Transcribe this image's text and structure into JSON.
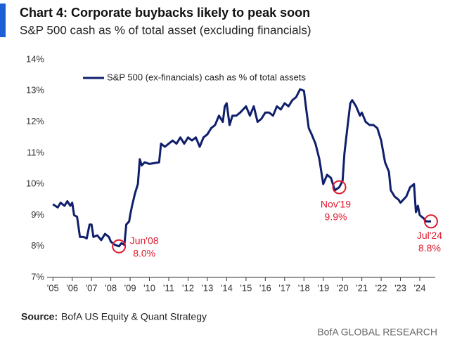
{
  "chart_data": {
    "type": "line",
    "title": "Chart 4: Corporate buybacks likely to peak soon",
    "subtitle": "S&P 500 cash as % of total asset (excluding financials)",
    "source_label": "Source:",
    "source": "BofA US Equity & Quant Strategy",
    "footer": "BofA GLOBAL RESEARCH",
    "legend": "upper left",
    "grid": false,
    "xlim": [
      2004.7,
      2024.8
    ],
    "ylim": [
      7,
      14
    ],
    "yticks": [
      {
        "value": 7,
        "label": "7%"
      },
      {
        "value": 8,
        "label": "8%"
      },
      {
        "value": 9,
        "label": "9%"
      },
      {
        "value": 10,
        "label": "10%"
      },
      {
        "value": 11,
        "label": "11%"
      },
      {
        "value": 12,
        "label": "12%"
      },
      {
        "value": 13,
        "label": "13%"
      },
      {
        "value": 14,
        "label": "14%"
      }
    ],
    "xticks": [
      {
        "value": 2005,
        "label": "'05"
      },
      {
        "value": 2006,
        "label": "'06"
      },
      {
        "value": 2007,
        "label": "'07"
      },
      {
        "value": 2008,
        "label": "'08"
      },
      {
        "value": 2009,
        "label": "'09"
      },
      {
        "value": 2010,
        "label": "'10"
      },
      {
        "value": 2011,
        "label": "'11"
      },
      {
        "value": 2012,
        "label": "'12"
      },
      {
        "value": 2013,
        "label": "'13"
      },
      {
        "value": 2014,
        "label": "'14"
      },
      {
        "value": 2015,
        "label": "'15"
      },
      {
        "value": 2016,
        "label": "'16"
      },
      {
        "value": 2017,
        "label": "'17"
      },
      {
        "value": 2018,
        "label": "'18"
      },
      {
        "value": 2019,
        "label": "'19"
      },
      {
        "value": 2020,
        "label": "'20"
      },
      {
        "value": 2021,
        "label": "'21"
      },
      {
        "value": 2022,
        "label": "'22"
      },
      {
        "value": 2023,
        "label": "'23"
      },
      {
        "value": 2024,
        "label": "'24"
      }
    ],
    "x": [
      2005.0,
      2005.25,
      2005.4,
      2005.6,
      2005.75,
      2005.9,
      2006.0,
      2006.1,
      2006.25,
      2006.4,
      2006.6,
      2006.75,
      2006.9,
      2007.0,
      2007.1,
      2007.3,
      2007.5,
      2007.7,
      2007.9,
      2008.0,
      2008.2,
      2008.42,
      2008.55,
      2008.7,
      2008.8,
      2008.95,
      2009.0,
      2009.1,
      2009.25,
      2009.4,
      2009.5,
      2009.6,
      2009.75,
      2010.0,
      2010.5,
      2010.6,
      2010.8,
      2011.0,
      2011.2,
      2011.4,
      2011.6,
      2011.8,
      2012.0,
      2012.2,
      2012.4,
      2012.6,
      2012.8,
      2013.0,
      2013.2,
      2013.4,
      2013.6,
      2013.8,
      2013.9,
      2014.0,
      2014.15,
      2014.3,
      2014.5,
      2014.7,
      2015.0,
      2015.2,
      2015.4,
      2015.6,
      2015.8,
      2016.0,
      2016.2,
      2016.4,
      2016.6,
      2016.8,
      2017.0,
      2017.2,
      2017.4,
      2017.6,
      2017.8,
      2018.0,
      2018.1,
      2018.25,
      2018.4,
      2018.6,
      2018.8,
      2019.0,
      2019.2,
      2019.4,
      2019.6,
      2019.83,
      2020.0,
      2020.1,
      2020.25,
      2020.4,
      2020.5,
      2020.7,
      2020.9,
      2021.0,
      2021.2,
      2021.4,
      2021.6,
      2021.8,
      2022.0,
      2022.2,
      2022.4,
      2022.5,
      2022.7,
      2022.9,
      2023.0,
      2023.3,
      2023.5,
      2023.7,
      2023.8,
      2023.9,
      2024.0,
      2024.2,
      2024.33,
      2024.58
    ],
    "series": [
      {
        "name": "S&P 500 (ex-financials) cash as % of total assets",
        "color": "#0f1f6b",
        "values": [
          9.35,
          9.25,
          9.4,
          9.3,
          9.45,
          9.3,
          9.4,
          9.0,
          8.95,
          8.3,
          8.3,
          8.25,
          8.7,
          8.7,
          8.3,
          8.35,
          8.2,
          8.4,
          8.3,
          8.15,
          8.05,
          8.0,
          8.1,
          8.05,
          8.7,
          8.8,
          9.0,
          9.3,
          9.7,
          10.0,
          10.8,
          10.6,
          10.7,
          10.65,
          10.7,
          11.3,
          11.2,
          11.3,
          11.4,
          11.3,
          11.5,
          11.3,
          11.5,
          11.4,
          11.5,
          11.2,
          11.5,
          11.6,
          11.8,
          11.9,
          12.2,
          12.0,
          12.5,
          12.6,
          11.9,
          12.2,
          12.2,
          12.3,
          12.5,
          12.2,
          12.5,
          12.0,
          12.1,
          12.3,
          12.3,
          12.2,
          12.5,
          12.4,
          12.6,
          12.5,
          12.7,
          12.8,
          13.05,
          13.0,
          12.5,
          11.8,
          11.6,
          11.3,
          10.8,
          10.0,
          10.3,
          10.2,
          9.8,
          9.9,
          10.1,
          11.0,
          11.8,
          12.6,
          12.7,
          12.5,
          12.2,
          12.3,
          12.0,
          11.9,
          11.9,
          11.8,
          11.4,
          10.7,
          10.4,
          9.8,
          9.6,
          9.5,
          9.4,
          9.6,
          9.9,
          10.0,
          9.1,
          9.3,
          9.0,
          8.9,
          8.8,
          8.8
        ]
      }
    ],
    "annotations": [
      {
        "label": "Jun'08",
        "value_label": "8.0%",
        "x": 2008.42,
        "y": 8.0,
        "color": "#e0182d"
      },
      {
        "label": "Nov'19",
        "value_label": "9.9%",
        "x": 2019.83,
        "y": 9.9,
        "color": "#e0182d"
      },
      {
        "label": "Jul'24",
        "value_label": "8.8%",
        "x": 2024.58,
        "y": 8.8,
        "color": "#e0182d"
      }
    ]
  }
}
